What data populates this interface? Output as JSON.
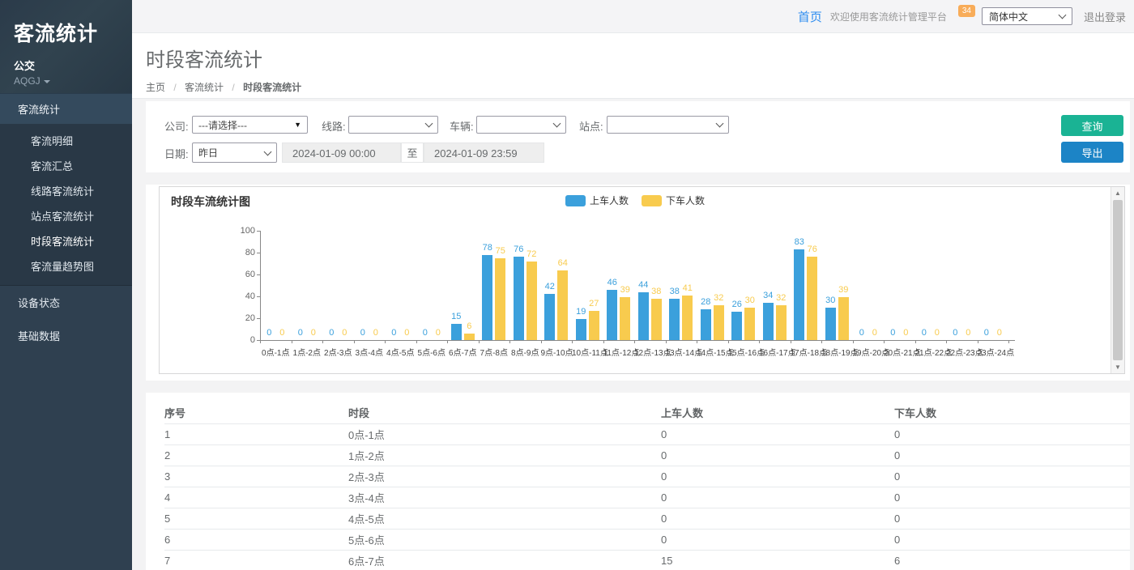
{
  "sidebar": {
    "brand": "客流统计",
    "org": "公交",
    "user": "AQGJ",
    "menu_parent": "客流统计",
    "submenu": [
      "客流明细",
      "客流汇总",
      "线路客流统计",
      "站点客流统计",
      "时段客流统计",
      "客流量趋势图"
    ],
    "active_submenu": "时段客流统计",
    "items": [
      "设备状态",
      "基础数据"
    ]
  },
  "topbar": {
    "home": "首页",
    "welcome": "欢迎使用客流统计管理平台",
    "badge": "34",
    "language": "简体中文",
    "logout": "退出登录"
  },
  "page": {
    "title": "时段客流统计",
    "breadcrumb": [
      "主页",
      "客流统计",
      "时段客流统计"
    ]
  },
  "filters": {
    "company_label": "公司:",
    "company_value": "---请选择---",
    "line_label": "线路:",
    "line_value": "",
    "vehicle_label": "车辆:",
    "vehicle_value": "",
    "station_label": "站点:",
    "station_value": "",
    "date_label": "日期:",
    "date_preset": "昨日",
    "date_start": "2024-01-09 00:00",
    "date_separator": "至",
    "date_end": "2024-01-09 23:59",
    "query_button": "查询",
    "export_button": "导出"
  },
  "chart_data": {
    "type": "bar",
    "title": "时段车流统计图",
    "categories": [
      "0点-1点",
      "1点-2点",
      "2点-3点",
      "3点-4点",
      "4点-5点",
      "5点-6点",
      "6点-7点",
      "7点-8点",
      "8点-9点",
      "9点-10点",
      "10点-11点",
      "11点-12点",
      "12点-13点",
      "13点-14点",
      "14点-15点",
      "15点-16点",
      "16点-17点",
      "17点-18点",
      "18点-19点",
      "19点-20点",
      "20点-21点",
      "21点-22点",
      "22点-23点",
      "23点-24点"
    ],
    "series": [
      {
        "name": "上车人数",
        "color": "#3ba0dc",
        "values": [
          0,
          0,
          0,
          0,
          0,
          0,
          15,
          78,
          76,
          42,
          19,
          46,
          44,
          38,
          28,
          26,
          34,
          83,
          30,
          0,
          0,
          0,
          0,
          0
        ]
      },
      {
        "name": "下车人数",
        "color": "#f8cb4e",
        "values": [
          0,
          0,
          0,
          0,
          0,
          0,
          6,
          75,
          72,
          64,
          27,
          39,
          38,
          41,
          32,
          30,
          32,
          76,
          39,
          0,
          0,
          0,
          0,
          0
        ]
      }
    ],
    "xlabel": "",
    "ylabel": "",
    "ylim": [
      0,
      100
    ],
    "ytick_step": 20,
    "grid": false,
    "legend_position": "top"
  },
  "table": {
    "headers": [
      "序号",
      "时段",
      "上车人数",
      "下车人数"
    ],
    "rows": [
      [
        "1",
        "0点-1点",
        "0",
        "0"
      ],
      [
        "2",
        "1点-2点",
        "0",
        "0"
      ],
      [
        "3",
        "2点-3点",
        "0",
        "0"
      ],
      [
        "4",
        "3点-4点",
        "0",
        "0"
      ],
      [
        "5",
        "4点-5点",
        "0",
        "0"
      ],
      [
        "6",
        "5点-6点",
        "0",
        "0"
      ],
      [
        "7",
        "6点-7点",
        "15",
        "6"
      ]
    ]
  },
  "colors": {
    "accent_green": "#1ab394",
    "accent_blue": "#1c84c6",
    "badge_orange": "#f8ac59",
    "sidebar_bg": "#2f4050",
    "series_blue": "#3ba0dc",
    "series_yellow": "#f8cb4e"
  }
}
